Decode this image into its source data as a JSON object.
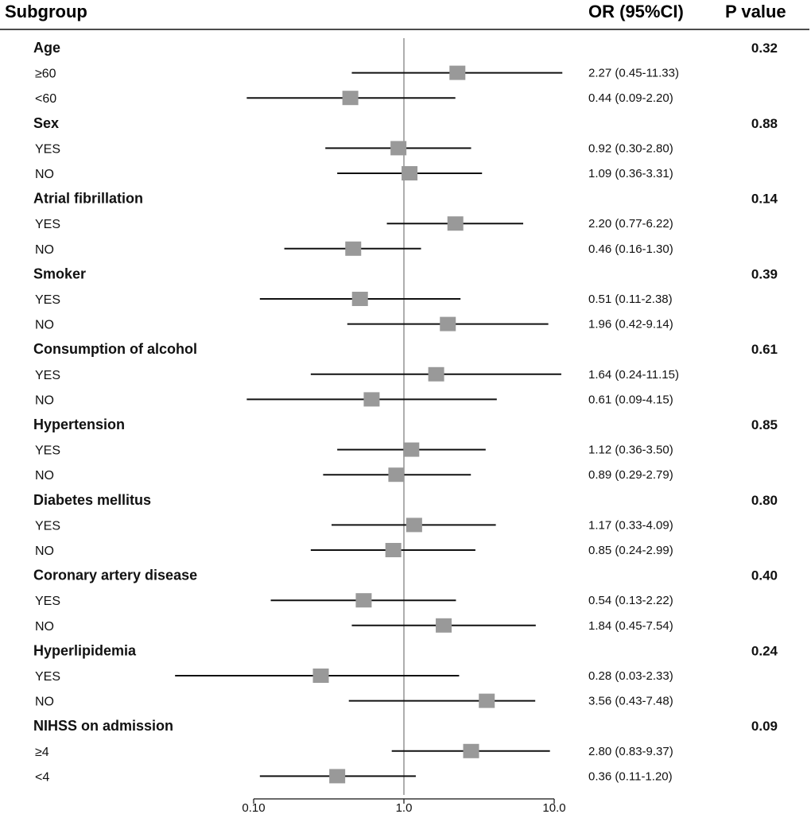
{
  "chart_data": {
    "type": "forest",
    "columns": {
      "subgroup": "Subgroup",
      "or": "OR  (95%CI)",
      "p": "P value"
    },
    "x_axis": {
      "scale": "log",
      "range": [
        0.1,
        10
      ],
      "ticks": [
        "0.10",
        "1.0",
        "10.0"
      ],
      "reference": 1.0
    },
    "groups": [
      {
        "label": "Age",
        "p": "0.32",
        "rows": [
          {
            "label": "≥60",
            "or": 2.27,
            "lo": 0.45,
            "hi": 11.33,
            "text": "2.27  (0.45-11.33)"
          },
          {
            "label": "<60",
            "or": 0.44,
            "lo": 0.09,
            "hi": 2.2,
            "text": "0.44  (0.09-2.20)"
          }
        ]
      },
      {
        "label": "Sex",
        "p": "0.88",
        "rows": [
          {
            "label": "YES",
            "or": 0.92,
            "lo": 0.3,
            "hi": 2.8,
            "text": "0.92  (0.30-2.80)"
          },
          {
            "label": "NO",
            "or": 1.09,
            "lo": 0.36,
            "hi": 3.31,
            "text": "1.09  (0.36-3.31)"
          }
        ]
      },
      {
        "label": "Atrial fibrillation",
        "p": "0.14",
        "rows": [
          {
            "label": "YES",
            "or": 2.2,
            "lo": 0.77,
            "hi": 6.22,
            "text": "2.20  (0.77-6.22)"
          },
          {
            "label": "NO",
            "or": 0.46,
            "lo": 0.16,
            "hi": 1.3,
            "text": "0.46  (0.16-1.30)"
          }
        ]
      },
      {
        "label": "Smoker",
        "p": "0.39",
        "rows": [
          {
            "label": "YES",
            "or": 0.51,
            "lo": 0.11,
            "hi": 2.38,
            "text": "0.51  (0.11-2.38)"
          },
          {
            "label": "NO",
            "or": 1.96,
            "lo": 0.42,
            "hi": 9.14,
            "text": "1.96  (0.42-9.14)"
          }
        ]
      },
      {
        "label": "Consumption of alcohol",
        "p": "0.61",
        "rows": [
          {
            "label": "YES",
            "or": 1.64,
            "lo": 0.24,
            "hi": 11.15,
            "text": "1.64  (0.24-11.15)"
          },
          {
            "label": "NO",
            "or": 0.61,
            "lo": 0.09,
            "hi": 4.15,
            "text": "0.61  (0.09-4.15)"
          }
        ]
      },
      {
        "label": "Hypertension",
        "p": "0.85",
        "rows": [
          {
            "label": "YES",
            "or": 1.12,
            "lo": 0.36,
            "hi": 3.5,
            "text": "1.12  (0.36-3.50)"
          },
          {
            "label": "NO",
            "or": 0.89,
            "lo": 0.29,
            "hi": 2.79,
            "text": "0.89  (0.29-2.79)"
          }
        ]
      },
      {
        "label": "Diabetes mellitus",
        "p": "0.80",
        "rows": [
          {
            "label": "YES",
            "or": 1.17,
            "lo": 0.33,
            "hi": 4.09,
            "text": "1.17  (0.33-4.09)"
          },
          {
            "label": "NO",
            "or": 0.85,
            "lo": 0.24,
            "hi": 2.99,
            "text": "0.85  (0.24-2.99)"
          }
        ]
      },
      {
        "label": "Coronary artery disease",
        "p": "0.40",
        "rows": [
          {
            "label": "YES",
            "or": 0.54,
            "lo": 0.13,
            "hi": 2.22,
            "text": "0.54  (0.13-2.22)"
          },
          {
            "label": "NO",
            "or": 1.84,
            "lo": 0.45,
            "hi": 7.54,
            "text": "1.84  (0.45-7.54)"
          }
        ]
      },
      {
        "label": "Hyperlipidemia",
        "p": "0.24",
        "rows": [
          {
            "label": "YES",
            "or": 0.28,
            "lo": 0.03,
            "hi": 2.33,
            "text": "0.28  (0.03-2.33)"
          },
          {
            "label": "NO",
            "or": 3.56,
            "lo": 0.43,
            "hi": 7.48,
            "text": "3.56  (0.43-7.48)"
          }
        ]
      },
      {
        "label": "NIHSS  on admission",
        "p": "0.09",
        "rows": [
          {
            "label": "≥4",
            "or": 2.8,
            "lo": 0.83,
            "hi": 9.37,
            "text": "2.80  (0.83-9.37)"
          },
          {
            "label": "<4",
            "or": 0.36,
            "lo": 0.11,
            "hi": 1.2,
            "text": "0.36  (0.11-1.20)"
          }
        ]
      }
    ],
    "colors": {
      "marker": "#999999",
      "ci_line": "#111111",
      "reference_line": "#9a9a9a",
      "text": "#111111"
    }
  }
}
